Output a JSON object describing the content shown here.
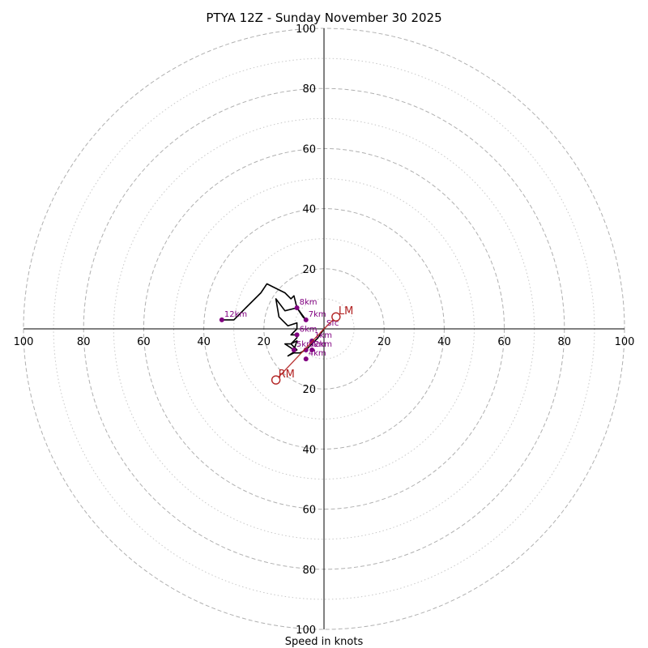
{
  "chart_data": {
    "type": "hodograph",
    "title": "PTYA 12Z - Sunday November 30 2025",
    "xlabel": "Speed in knots",
    "units": "knots",
    "range": [
      -100,
      100
    ],
    "major_rings": [
      20,
      40,
      60,
      80,
      100
    ],
    "minor_rings": [
      10,
      30,
      50,
      70,
      90
    ],
    "tick_labels": {
      "x_left": [
        "100",
        "80",
        "60",
        "40",
        "20"
      ],
      "x_right": [
        "20",
        "40",
        "60",
        "80",
        "100"
      ],
      "y_top": [
        "100",
        "80",
        "60",
        "40",
        "20"
      ],
      "y_bottom": [
        "20",
        "40",
        "60",
        "80",
        "100"
      ]
    },
    "trace": {
      "color": "#000000",
      "points": [
        [
          0,
          0
        ],
        [
          -2,
          -3
        ],
        [
          -4,
          -5
        ],
        [
          -6,
          -7
        ],
        [
          -8,
          -8
        ],
        [
          -10,
          -8
        ],
        [
          -12,
          -9
        ],
        [
          -9,
          -7
        ],
        [
          -11,
          -5
        ],
        [
          -9,
          -4
        ],
        [
          -10,
          -7
        ],
        [
          -13,
          -5
        ],
        [
          -11,
          -5
        ],
        [
          -9,
          -3
        ],
        [
          -9,
          -2
        ],
        [
          -11,
          -2
        ],
        [
          -9,
          0
        ],
        [
          -9,
          2
        ],
        [
          -12,
          1
        ],
        [
          -15,
          4
        ],
        [
          -16,
          10
        ],
        [
          -13,
          6
        ],
        [
          -9,
          7
        ],
        [
          -6,
          3
        ],
        [
          -7,
          4
        ],
        [
          -9,
          7
        ],
        [
          -10,
          11
        ],
        [
          -11,
          10
        ],
        [
          -13,
          12
        ],
        [
          -17,
          14
        ],
        [
          -19,
          15
        ],
        [
          -21,
          12
        ],
        [
          -26,
          7
        ],
        [
          -30,
          3
        ],
        [
          -34,
          3
        ]
      ]
    },
    "height_markers": {
      "color": "#800080",
      "points": [
        {
          "label": "Sfc",
          "u": 0,
          "v": 0
        },
        {
          "label": "1km",
          "u": -4,
          "v": -4
        },
        {
          "label": "2km",
          "u": -4,
          "v": -7
        },
        {
          "label": "3km",
          "u": -6,
          "v": -7
        },
        {
          "label": "4km",
          "u": -6,
          "v": -10
        },
        {
          "label": "5km",
          "u": -10,
          "v": -7
        },
        {
          "label": "6km",
          "u": -9,
          "v": -2
        },
        {
          "label": "7km",
          "u": -6,
          "v": 3
        },
        {
          "label": "8km",
          "u": -9,
          "v": 7
        },
        {
          "label": "12km",
          "u": -34,
          "v": 3
        }
      ]
    },
    "storm_motion": {
      "color": "#b22222",
      "points": [
        {
          "label": "LM",
          "u": 4,
          "v": 4
        },
        {
          "label": "RM",
          "u": -16,
          "v": -17
        }
      ]
    }
  }
}
